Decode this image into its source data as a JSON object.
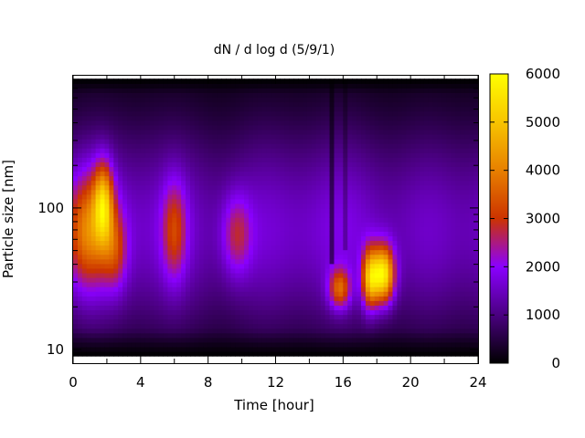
{
  "chart_data": {
    "type": "heatmap",
    "title": "dN / d log d (5/9/1)",
    "xlabel": "Time [hour]",
    "ylabel": "Particle size [nm]",
    "xlim": [
      0,
      24
    ],
    "x_ticks": [
      0,
      4,
      8,
      12,
      16,
      20,
      24
    ],
    "x_minor_ticks": [
      2,
      6,
      10,
      14,
      18,
      22
    ],
    "y_scale": "log",
    "ylim": [
      8,
      860
    ],
    "y_ticks": [
      10,
      100
    ],
    "y_tick_labels": [
      "10",
      "100"
    ],
    "y_minor_ticks": [
      20,
      30,
      40,
      50,
      60,
      70,
      80,
      90,
      200,
      300,
      400,
      500,
      600,
      700,
      800
    ],
    "colorbar": {
      "range": [
        0,
        6000
      ],
      "ticks": [
        0,
        1000,
        2000,
        3000,
        4000,
        5000,
        6000
      ],
      "tick_labels": [
        "0",
        "1000",
        "2000",
        "3000",
        "4000",
        "5000",
        "6000"
      ],
      "colors": [
        "#000000",
        "#4a0080",
        "#8a00ff",
        "#cc3300",
        "#e88000",
        "#f7c400",
        "#ffff00"
      ]
    },
    "grid": false,
    "legend": "none",
    "concentration_features": [
      {
        "t_center": 0.9,
        "t_width": 0.9,
        "d_center": 70,
        "d_spread_decades": 0.28,
        "value": 3500
      },
      {
        "t_center": 1.8,
        "t_width": 0.4,
        "d_center": 110,
        "d_spread_decades": 0.2,
        "value": 4000
      },
      {
        "t_center": 2.5,
        "t_width": 0.5,
        "d_center": 50,
        "d_spread_decades": 0.2,
        "value": 2500
      },
      {
        "t_center": 6.0,
        "t_width": 0.5,
        "d_center": 70,
        "d_spread_decades": 0.25,
        "value": 2700
      },
      {
        "t_center": 9.7,
        "t_width": 0.6,
        "d_center": 65,
        "d_spread_decades": 0.2,
        "value": 2500
      },
      {
        "t_center": 15.8,
        "t_width": 0.45,
        "d_center": 27,
        "d_spread_decades": 0.1,
        "value": 3500
      },
      {
        "t_center": 17.6,
        "t_width": 0.35,
        "d_center": 32,
        "d_spread_decades": 0.15,
        "value": 4500
      },
      {
        "t_center": 18.4,
        "t_width": 0.45,
        "d_center": 34,
        "d_spread_decades": 0.14,
        "value": 5600
      }
    ],
    "background_profile": {
      "d_center": 70,
      "d_spread_decades": 0.55,
      "value": 1850
    }
  }
}
